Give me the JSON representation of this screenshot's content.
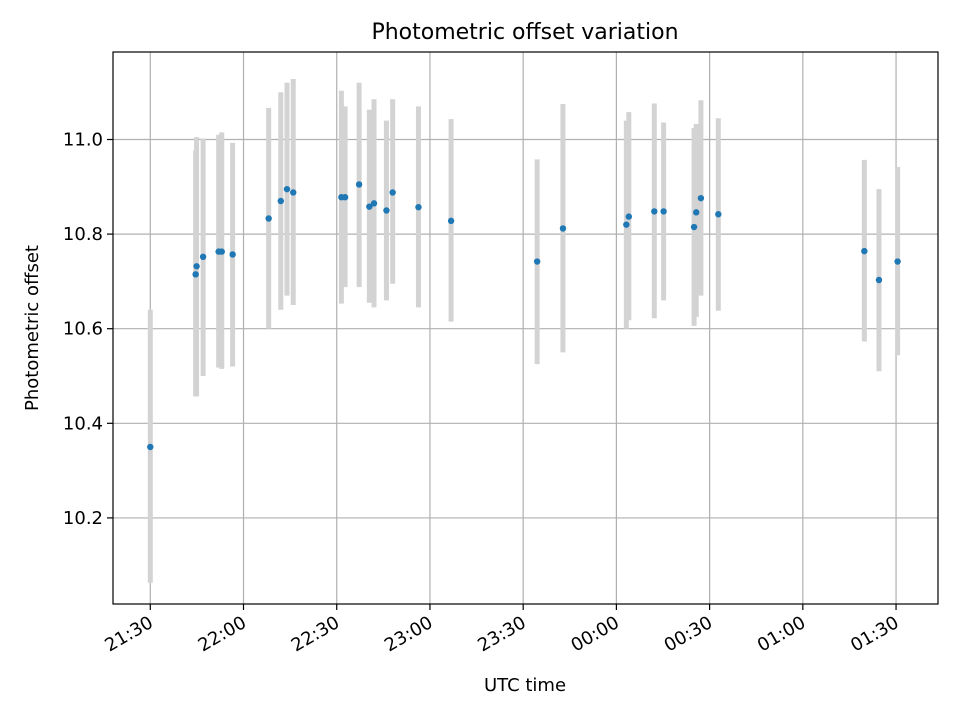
{
  "chart_data": {
    "type": "scatter",
    "title": "Photometric offset variation",
    "xlabel": "UTC time",
    "ylabel": "Photometric offset",
    "x_ticks": [
      "21:30",
      "22:00",
      "22:30",
      "23:00",
      "23:30",
      "00:00",
      "00:30",
      "01:00",
      "01:30"
    ],
    "y_ticks": [
      "10.2",
      "10.4",
      "10.6",
      "10.8",
      "11.0"
    ],
    "tick_values_y": [
      10.2,
      10.4,
      10.6,
      10.8,
      11.0
    ],
    "tick_values_x_minutes": [
      0,
      30,
      60,
      90,
      120,
      150,
      180,
      210,
      240
    ],
    "xlim_minutes": [
      -12,
      253.5
    ],
    "ylim": [
      10.018,
      11.185
    ],
    "grid": true,
    "point_color": "#1f77b4",
    "errorbar_color": "#d3d3d3",
    "series": [
      {
        "points": [
          {
            "t": 0.0,
            "y": 10.35,
            "lo": 10.063,
            "hi": 10.64
          },
          {
            "t": 14.6,
            "y": 10.715,
            "lo": 10.457,
            "hi": 10.977
          },
          {
            "t": 14.9,
            "y": 10.732,
            "lo": 10.457,
            "hi": 11.005
          },
          {
            "t": 17.0,
            "y": 10.752,
            "lo": 10.5,
            "hi": 11.002
          },
          {
            "t": 22.0,
            "y": 10.763,
            "lo": 10.518,
            "hi": 11.01
          },
          {
            "t": 23.0,
            "y": 10.763,
            "lo": 10.515,
            "hi": 11.015
          },
          {
            "t": 26.5,
            "y": 10.757,
            "lo": 10.52,
            "hi": 10.993
          },
          {
            "t": 38.1,
            "y": 10.833,
            "lo": 10.6,
            "hi": 11.067
          },
          {
            "t": 42.0,
            "y": 10.87,
            "lo": 10.64,
            "hi": 11.1
          },
          {
            "t": 44.0,
            "y": 10.895,
            "lo": 10.67,
            "hi": 11.12
          },
          {
            "t": 46.0,
            "y": 10.888,
            "lo": 10.65,
            "hi": 11.128
          },
          {
            "t": 61.5,
            "y": 10.878,
            "lo": 10.653,
            "hi": 11.103
          },
          {
            "t": 62.7,
            "y": 10.878,
            "lo": 10.688,
            "hi": 11.07
          },
          {
            "t": 67.2,
            "y": 10.905,
            "lo": 10.688,
            "hi": 11.12
          },
          {
            "t": 70.5,
            "y": 10.858,
            "lo": 10.655,
            "hi": 11.063
          },
          {
            "t": 72.0,
            "y": 10.865,
            "lo": 10.645,
            "hi": 11.085
          },
          {
            "t": 76.0,
            "y": 10.85,
            "lo": 10.66,
            "hi": 11.04
          },
          {
            "t": 78.0,
            "y": 10.888,
            "lo": 10.695,
            "hi": 11.085
          },
          {
            "t": 86.3,
            "y": 10.857,
            "lo": 10.645,
            "hi": 11.07
          },
          {
            "t": 96.8,
            "y": 10.828,
            "lo": 10.615,
            "hi": 11.043
          },
          {
            "t": 124.5,
            "y": 10.742,
            "lo": 10.525,
            "hi": 10.958
          },
          {
            "t": 132.8,
            "y": 10.812,
            "lo": 10.55,
            "hi": 11.075
          },
          {
            "t": 153.2,
            "y": 10.82,
            "lo": 10.6,
            "hi": 11.04
          },
          {
            "t": 154.0,
            "y": 10.837,
            "lo": 10.618,
            "hi": 11.058
          },
          {
            "t": 162.2,
            "y": 10.848,
            "lo": 10.622,
            "hi": 11.076
          },
          {
            "t": 165.2,
            "y": 10.848,
            "lo": 10.66,
            "hi": 11.036
          },
          {
            "t": 175.0,
            "y": 10.815,
            "lo": 10.606,
            "hi": 11.024
          },
          {
            "t": 175.7,
            "y": 10.846,
            "lo": 10.625,
            "hi": 11.033
          },
          {
            "t": 177.2,
            "y": 10.876,
            "lo": 10.67,
            "hi": 11.083
          },
          {
            "t": 182.8,
            "y": 10.842,
            "lo": 10.638,
            "hi": 11.045
          },
          {
            "t": 229.8,
            "y": 10.764,
            "lo": 10.573,
            "hi": 10.957
          },
          {
            "t": 234.5,
            "y": 10.703,
            "lo": 10.51,
            "hi": 10.895
          },
          {
            "t": 240.5,
            "y": 10.742,
            "lo": 10.544,
            "hi": 10.942
          }
        ]
      }
    ]
  }
}
